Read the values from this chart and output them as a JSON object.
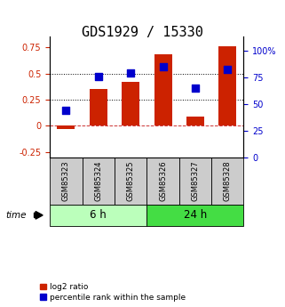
{
  "title": "GDS1929 / 15330",
  "samples": [
    "GSM85323",
    "GSM85324",
    "GSM85325",
    "GSM85326",
    "GSM85327",
    "GSM85328"
  ],
  "log2_ratio": [
    -0.03,
    0.35,
    0.42,
    0.68,
    0.09,
    0.76
  ],
  "percentile_rank": [
    0.44,
    0.76,
    0.79,
    0.85,
    0.65,
    0.83
  ],
  "groups": [
    {
      "label": "6 h",
      "indices": [
        0,
        1,
        2
      ],
      "color": "#bbffbb"
    },
    {
      "label": "24 h",
      "indices": [
        3,
        4,
        5
      ],
      "color": "#44dd44"
    }
  ],
  "ylim_left": [
    -0.3,
    0.85
  ],
  "ylim_right": [
    0.0,
    1.133
  ],
  "yticks_left": [
    -0.25,
    0.0,
    0.25,
    0.5,
    0.75
  ],
  "ytick_labels_left": [
    "-0.25",
    "0",
    "0.25",
    "0.5",
    "0.75"
  ],
  "yticks_right": [
    0.0,
    0.25,
    0.5,
    0.75,
    1.0
  ],
  "ytick_labels_right": [
    "0",
    "25",
    "50",
    "75",
    "100%"
  ],
  "bar_color": "#cc2200",
  "dot_color": "#0000cc",
  "bar_width": 0.55,
  "dot_size": 30,
  "legend_labels": [
    "log2 ratio",
    "percentile rank within the sample"
  ],
  "time_label": "time",
  "bg_color_sample": "#cccccc",
  "title_fontsize": 11,
  "tick_fontsize": 7,
  "label_fontsize": 7.5
}
